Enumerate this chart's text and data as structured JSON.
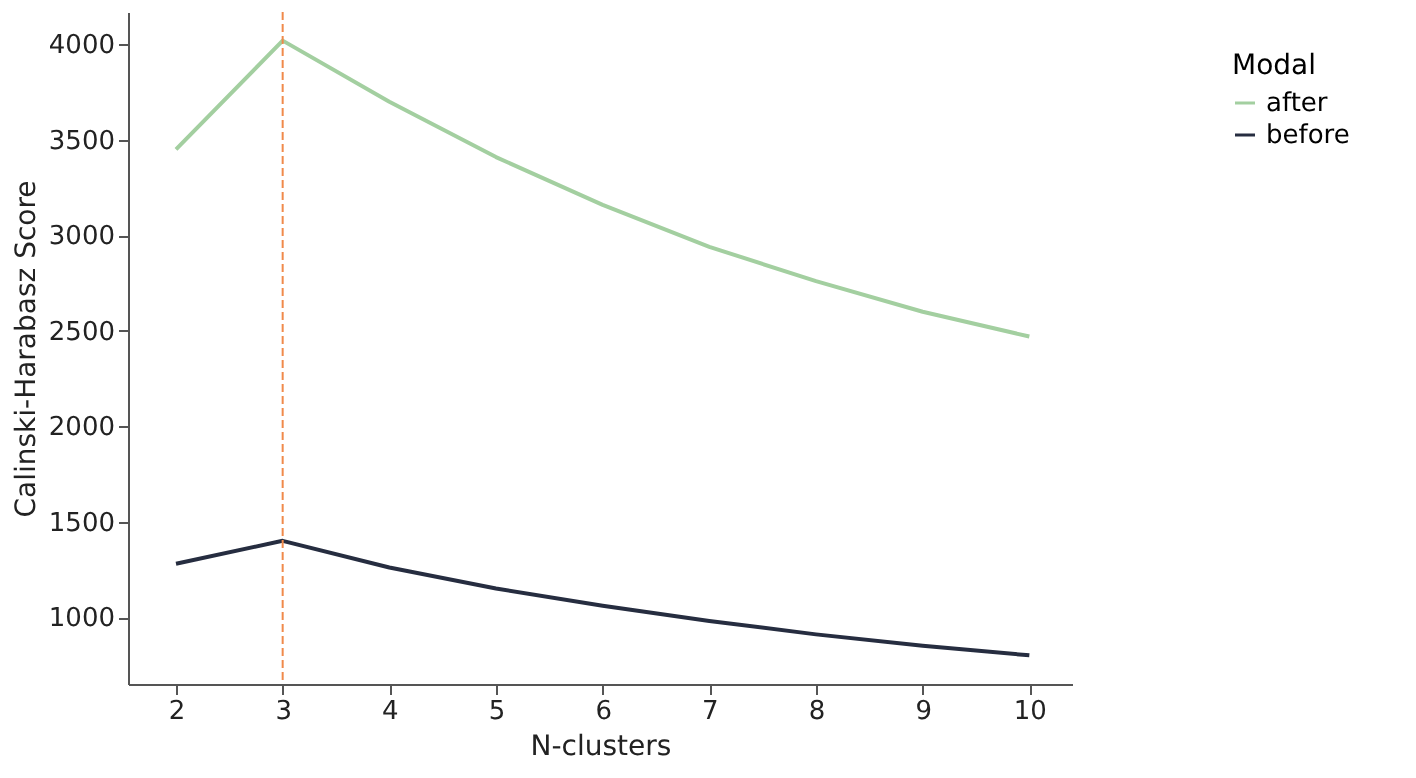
{
  "chart_data": {
    "type": "line",
    "xlabel": "N-clusters",
    "ylabel": "Calinski-Harabasz Score",
    "legend_title": "Modal",
    "x": [
      2,
      3,
      4,
      5,
      6,
      7,
      8,
      9,
      10
    ],
    "series": [
      {
        "name": "after",
        "color": "#a3cfa0",
        "values": [
          3450,
          4020,
          3700,
          3410,
          3160,
          2940,
          2760,
          2600,
          2470
        ]
      },
      {
        "name": "before",
        "color": "#262d40",
        "values": [
          1280,
          1400,
          1260,
          1150,
          1060,
          980,
          910,
          850,
          800
        ]
      }
    ],
    "xlim": [
      1.55,
      10.4
    ],
    "xticks": [
      2,
      3,
      4,
      5,
      6,
      7,
      8,
      9,
      10
    ],
    "ylim": [
      650,
      4170
    ],
    "yticks": [
      1000,
      1500,
      2000,
      2500,
      3000,
      3500,
      4000
    ],
    "ref_lines": [
      {
        "axis": "x",
        "value": 3,
        "color": "#f08a4b",
        "line_style": "dashed"
      }
    ],
    "grid": false,
    "legend": "right",
    "marker": "none",
    "line_style": "solid"
  }
}
